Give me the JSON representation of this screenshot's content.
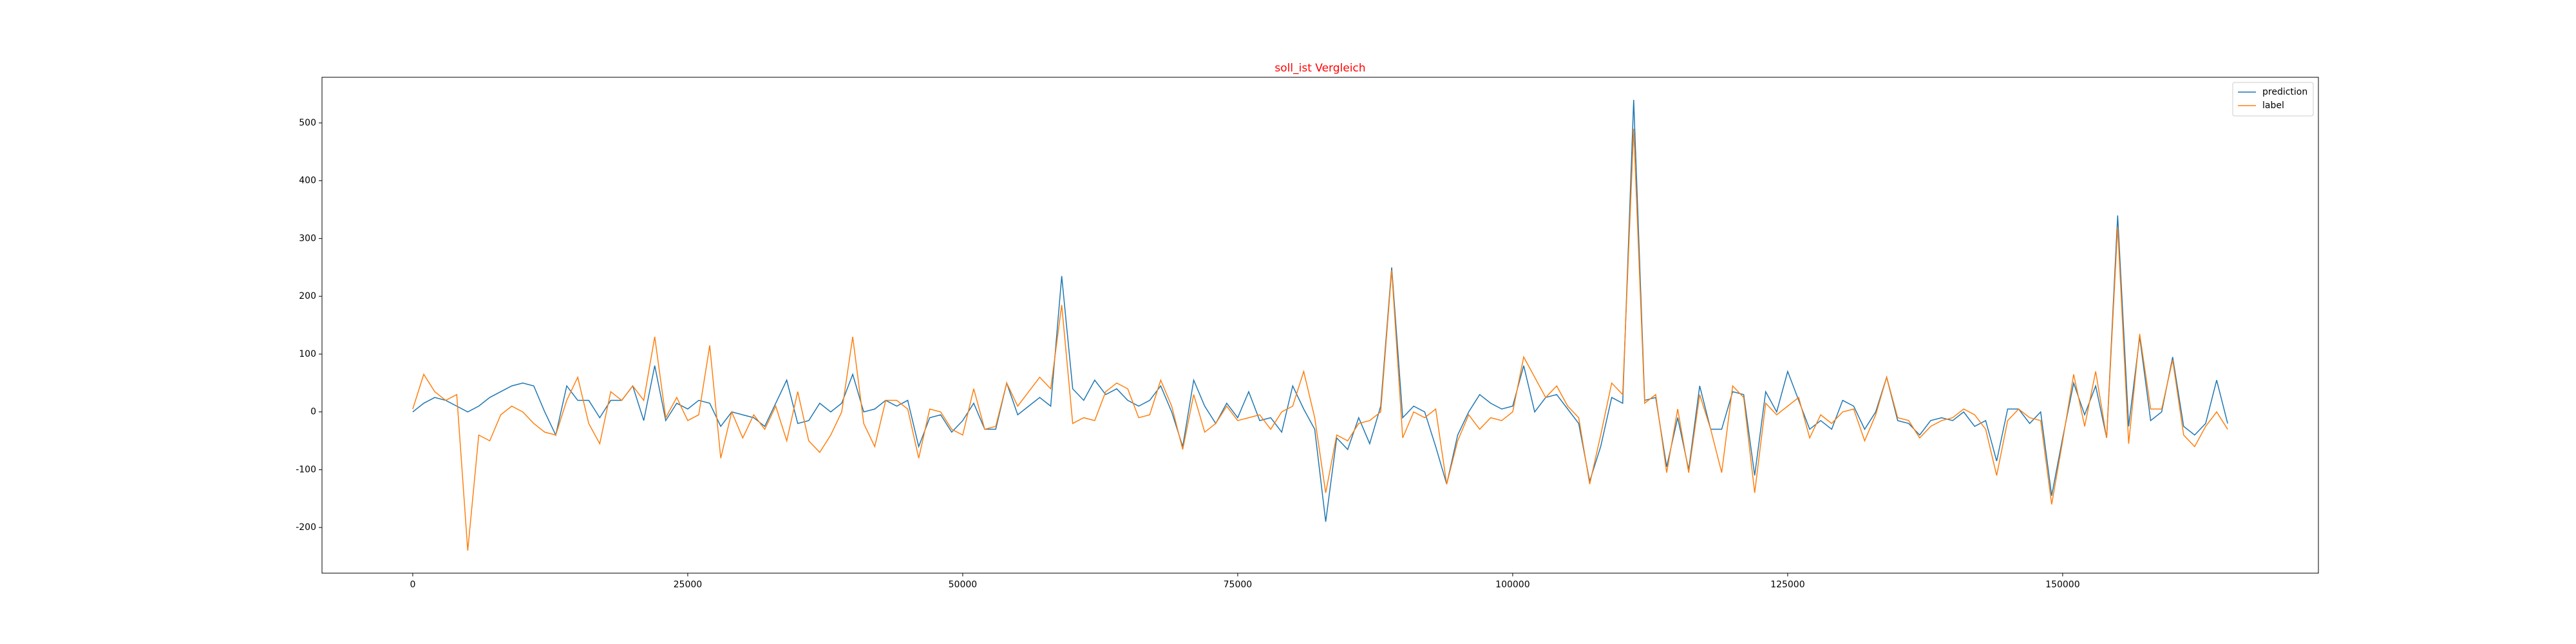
{
  "chart_data": {
    "type": "line",
    "title": "soll_ist Vergleich",
    "title_color": "#ff0000",
    "x": [
      0,
      1000,
      2000,
      3000,
      4000,
      5000,
      6000,
      7000,
      8000,
      9000,
      10000,
      11000,
      12000,
      13000,
      14000,
      15000,
      16000,
      17000,
      18000,
      19000,
      20000,
      21000,
      22000,
      23000,
      24000,
      25000,
      26000,
      27000,
      28000,
      29000,
      30000,
      31000,
      32000,
      33000,
      34000,
      35000,
      36000,
      37000,
      38000,
      39000,
      40000,
      41000,
      42000,
      43000,
      44000,
      45000,
      46000,
      47000,
      48000,
      49000,
      50000,
      51000,
      52000,
      53000,
      54000,
      55000,
      56000,
      57000,
      58000,
      59000,
      60000,
      61000,
      62000,
      63000,
      64000,
      65000,
      66000,
      67000,
      68000,
      69000,
      70000,
      71000,
      72000,
      73000,
      74000,
      75000,
      76000,
      77000,
      78000,
      79000,
      80000,
      81000,
      82000,
      83000,
      84000,
      85000,
      86000,
      87000,
      88000,
      89000,
      90000,
      91000,
      92000,
      93000,
      94000,
      95000,
      96000,
      97000,
      98000,
      99000,
      100000,
      101000,
      102000,
      103000,
      104000,
      105000,
      106000,
      107000,
      108000,
      109000,
      110000,
      111000,
      112000,
      113000,
      114000,
      115000,
      116000,
      117000,
      118000,
      119000,
      120000,
      121000,
      122000,
      123000,
      124000,
      125000,
      126000,
      127000,
      128000,
      129000,
      130000,
      131000,
      132000,
      133000,
      134000,
      135000,
      136000,
      137000,
      138000,
      139000,
      140000,
      141000,
      142000,
      143000,
      144000,
      145000,
      146000,
      147000,
      148000,
      149000,
      150000,
      151000,
      152000,
      153000,
      154000,
      155000,
      156000,
      157000,
      158000,
      159000,
      160000,
      161000,
      162000,
      163000,
      164000,
      165000
    ],
    "series": [
      {
        "name": "prediction",
        "color": "#1f77b4",
        "values": [
          0,
          15,
          25,
          20,
          10,
          0,
          10,
          25,
          35,
          45,
          50,
          45,
          0,
          -40,
          45,
          20,
          20,
          -10,
          20,
          20,
          45,
          -15,
          80,
          -15,
          15,
          5,
          20,
          15,
          -25,
          0,
          -5,
          -10,
          -25,
          15,
          55,
          -20,
          -15,
          15,
          0,
          15,
          65,
          0,
          5,
          20,
          10,
          20,
          -60,
          -10,
          -5,
          -35,
          -15,
          15,
          -30,
          -30,
          50,
          -5,
          10,
          25,
          10,
          235,
          40,
          20,
          55,
          30,
          40,
          20,
          10,
          20,
          45,
          0,
          -60,
          55,
          10,
          -20,
          15,
          -10,
          35,
          -15,
          -10,
          -35,
          45,
          5,
          -30,
          -190,
          -45,
          -65,
          -10,
          -55,
          10,
          250,
          -10,
          10,
          0,
          -60,
          -125,
          -40,
          0,
          30,
          15,
          5,
          10,
          80,
          0,
          25,
          30,
          5,
          -20,
          -120,
          -60,
          25,
          15,
          540,
          20,
          25,
          -95,
          -10,
          -100,
          45,
          -30,
          -30,
          35,
          30,
          -110,
          35,
          0,
          70,
          20,
          -30,
          -15,
          -30,
          20,
          10,
          -30,
          0,
          60,
          -15,
          -20,
          -40,
          -15,
          -10,
          -15,
          0,
          -25,
          -15,
          -85,
          5,
          5,
          -20,
          0,
          -145,
          -45,
          50,
          -5,
          45,
          -45,
          340,
          -25,
          130,
          -15,
          0,
          95,
          -25,
          -40,
          -20,
          55,
          -20
        ]
      },
      {
        "name": "label",
        "color": "#ff7f0e",
        "values": [
          5,
          65,
          35,
          20,
          30,
          -240,
          -40,
          -50,
          -5,
          10,
          0,
          -20,
          -35,
          -40,
          20,
          60,
          -20,
          -55,
          35,
          20,
          45,
          20,
          130,
          -10,
          25,
          -15,
          -5,
          115,
          -80,
          0,
          -45,
          -5,
          -30,
          10,
          -50,
          35,
          -50,
          -70,
          -40,
          0,
          130,
          -20,
          -60,
          20,
          20,
          5,
          -80,
          5,
          0,
          -30,
          -40,
          40,
          -30,
          -25,
          50,
          10,
          35,
          60,
          40,
          185,
          -20,
          -10,
          -15,
          35,
          50,
          40,
          -10,
          -5,
          55,
          10,
          -65,
          30,
          -35,
          -20,
          10,
          -15,
          -10,
          -5,
          -30,
          0,
          10,
          70,
          -10,
          -140,
          -40,
          -50,
          -20,
          -15,
          0,
          245,
          -45,
          0,
          -10,
          5,
          -125,
          -50,
          -5,
          -30,
          -10,
          -15,
          0,
          95,
          60,
          25,
          45,
          10,
          -10,
          -125,
          -40,
          50,
          30,
          490,
          15,
          30,
          -105,
          5,
          -105,
          30,
          -30,
          -105,
          45,
          25,
          -140,
          15,
          -5,
          10,
          25,
          -45,
          -5,
          -20,
          0,
          5,
          -50,
          -5,
          60,
          -10,
          -15,
          -45,
          -25,
          -15,
          -10,
          5,
          -5,
          -30,
          -110,
          -15,
          5,
          -10,
          -15,
          -160,
          -50,
          65,
          -25,
          70,
          -45,
          320,
          -55,
          135,
          5,
          5,
          90,
          -40,
          -60,
          -25,
          0,
          -30
        ]
      }
    ],
    "xlim": [
      -8250,
      173250
    ],
    "ylim": [
      -279,
      579
    ],
    "xticks": [
      0,
      25000,
      50000,
      75000,
      100000,
      125000,
      150000
    ],
    "yticks": [
      -200,
      -100,
      0,
      100,
      200,
      300,
      400,
      500
    ],
    "legend": "upper right"
  }
}
